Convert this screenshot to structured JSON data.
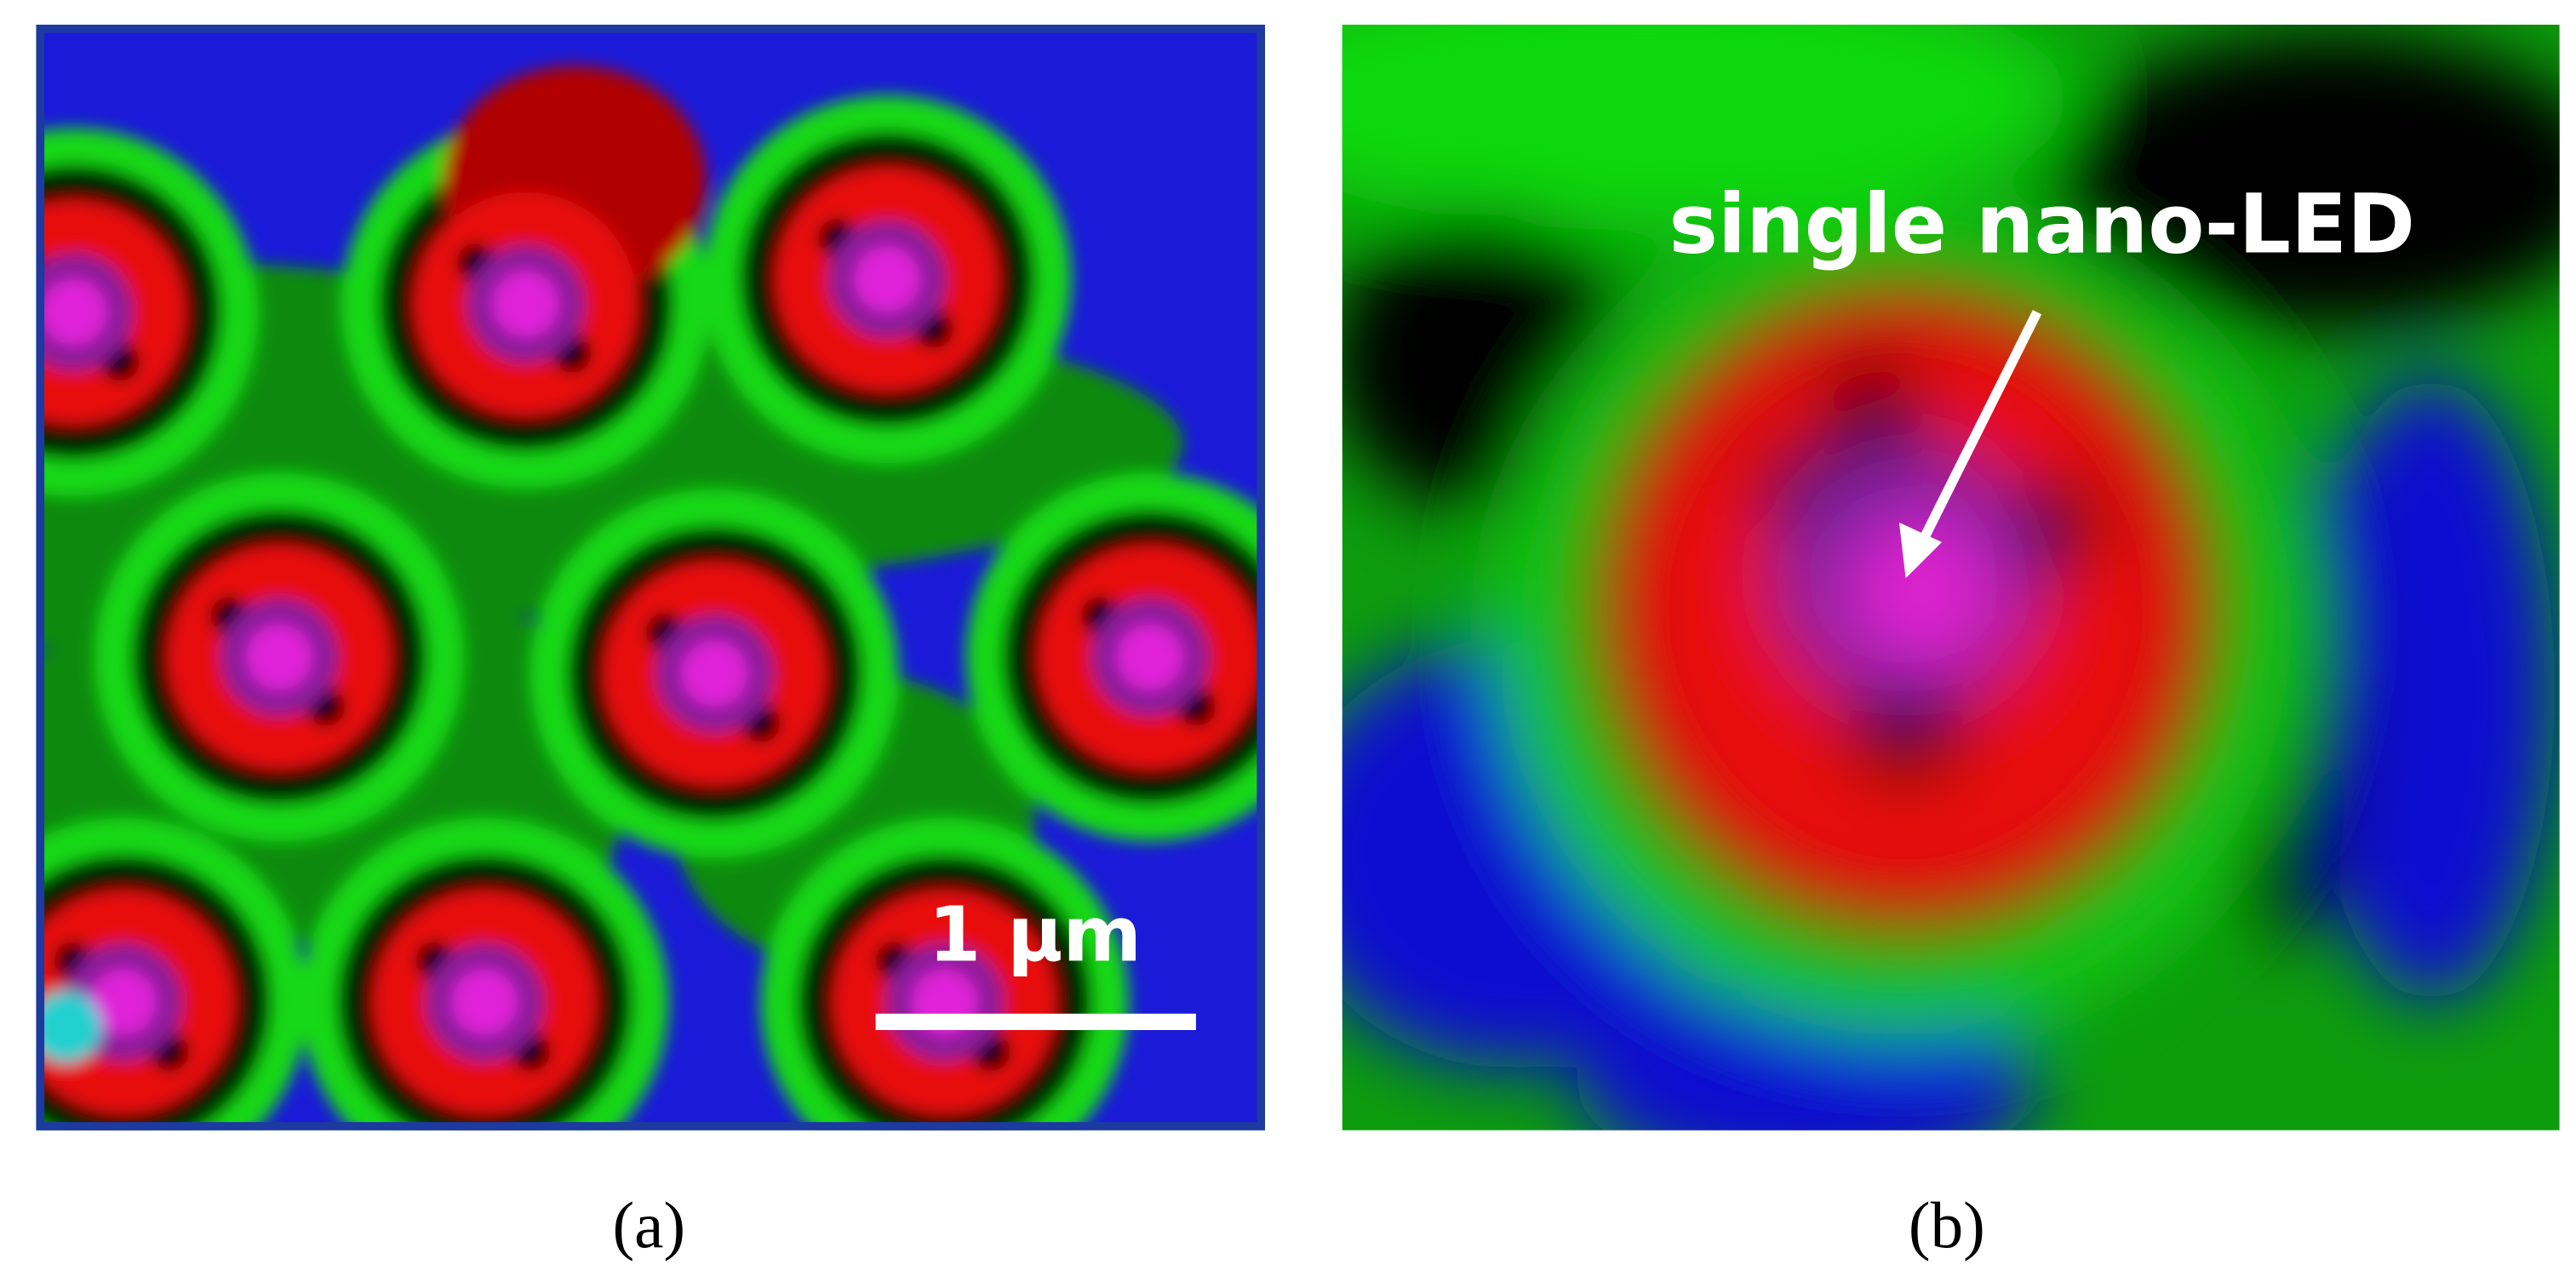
{
  "panels": [
    {
      "label": "(a)",
      "scale_bar": "1 µm"
    },
    {
      "label": "(b)",
      "annotation": "single nano-LED"
    }
  ]
}
